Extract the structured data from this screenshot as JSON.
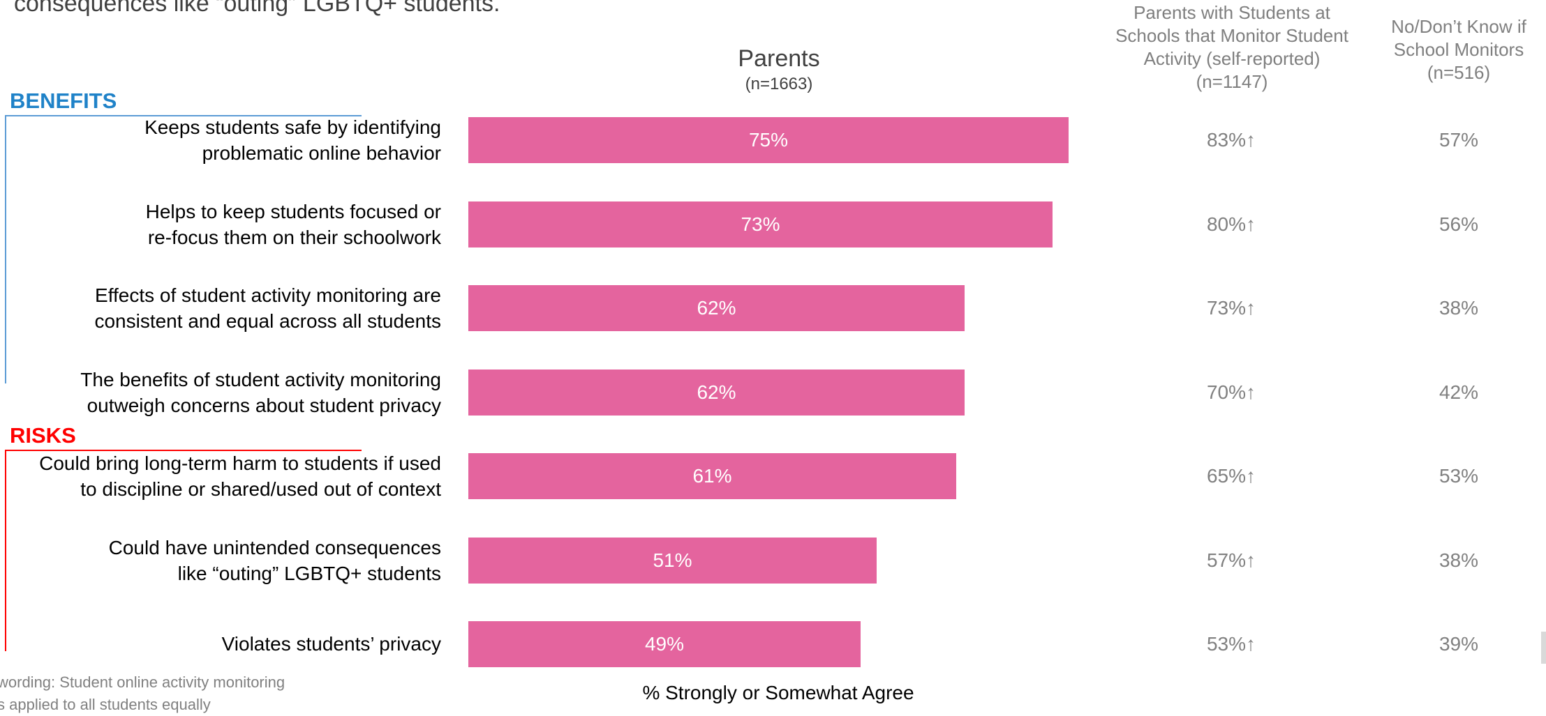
{
  "intro_text": "consequences like “outing” LGBTQ+ students.",
  "sections": {
    "benefits": "BENEFITS",
    "risks": "RISKS"
  },
  "parents_header": {
    "title": "Parents",
    "n": "(n=1663)"
  },
  "column_headers": {
    "monitor": "Parents with Students at Schools that Monitor Student Activity (self-reported) (n=1147)",
    "no_dont_know": "No/Don’t Know if School Monitors (n=516)"
  },
  "column_header_lines": {
    "monitor": [
      "Parents with Students at",
      "Schools that Monitor Student",
      "Activity (self-reported)",
      "(n=1147)"
    ],
    "no_dont_know": [
      "No/Don’t Know if",
      "School Monitors",
      "(n=516)"
    ]
  },
  "chart_data": {
    "type": "bar",
    "orientation": "horizontal",
    "xlabel": "% Strongly or Somewhat Agree",
    "xlim": [
      0,
      100
    ],
    "series_name": "Parents (n=1663)",
    "colors": {
      "bar": "#e4649e",
      "benefits": "#1f82c8",
      "risks": "#ff0000"
    },
    "rows": [
      {
        "section": "benefits",
        "label_lines": [
          "Keeps students safe by identifying",
          "problematic online behavior"
        ],
        "value": 75,
        "value_label": "75%",
        "monitor": "83%↑",
        "no_dont_know": "57%"
      },
      {
        "section": "benefits",
        "label_lines": [
          "Helps to keep students focused or",
          "re-focus them on their schoolwork"
        ],
        "value": 73,
        "value_label": "73%",
        "monitor": "80%↑",
        "no_dont_know": "56%"
      },
      {
        "section": "benefits",
        "label_lines": [
          "Effects of student activity monitoring are",
          "consistent and equal across all students"
        ],
        "value": 62,
        "value_label": "62%",
        "monitor": "73%↑",
        "no_dont_know": "38%"
      },
      {
        "section": "benefits",
        "label_lines": [
          "The benefits of student activity monitoring",
          "outweigh concerns about student privacy"
        ],
        "value": 62,
        "value_label": "62%",
        "monitor": "70%↑",
        "no_dont_know": "42%"
      },
      {
        "section": "risks",
        "label_lines": [
          "Could bring long-term harm to students if used",
          "to discipline or shared/used out of context"
        ],
        "value": 61,
        "value_label": "61%",
        "monitor": "65%↑",
        "no_dont_know": "53%"
      },
      {
        "section": "risks",
        "label_lines": [
          "Could have unintended consequences",
          "like “outing” LGBTQ+ students"
        ],
        "value": 51,
        "value_label": "51%",
        "monitor": "57%↑",
        "no_dont_know": "38%"
      },
      {
        "section": "risks",
        "label_lines": [
          "Violates students’ privacy"
        ],
        "value": 49,
        "value_label": "49%",
        "monitor": "53%↑",
        "no_dont_know": "39%"
      }
    ]
  },
  "footnote_lines": [
    "wording: Student online activity monitoring",
    "s applied to all students equally"
  ]
}
